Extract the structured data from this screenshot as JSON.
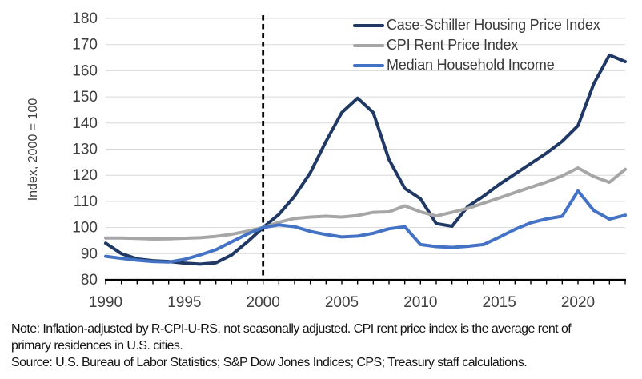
{
  "chart_data": {
    "type": "line",
    "title": "",
    "xlabel": "",
    "ylabel": "Index, 2000 = 100",
    "xlim": [
      1990,
      2023
    ],
    "ylim": [
      80,
      180
    ],
    "yticks": [
      80,
      90,
      100,
      110,
      120,
      130,
      140,
      150,
      160,
      170,
      180
    ],
    "xticks": [
      1990,
      1995,
      2000,
      2005,
      2010,
      2015,
      2020
    ],
    "minor_xtick_step": 1,
    "grid": "horizontal",
    "legend_position": "inside-top-right",
    "reference_line": {
      "type": "vertical",
      "style": "dashed",
      "x": 2000,
      "color": "#000000"
    },
    "x": [
      1990,
      1991,
      1992,
      1993,
      1994,
      1995,
      1996,
      1997,
      1998,
      1999,
      2000,
      2001,
      2002,
      2003,
      2004,
      2005,
      2006,
      2007,
      2008,
      2009,
      2010,
      2011,
      2012,
      2013,
      2014,
      2015,
      2016,
      2017,
      2018,
      2019,
      2020,
      2021,
      2022,
      2023
    ],
    "series": [
      {
        "name": "Case-Schiller Housing Price Index",
        "color": "#1f3864",
        "values": [
          94,
          90,
          88,
          87.3,
          87,
          86.4,
          86,
          86.5,
          89.5,
          94.5,
          100,
          105,
          112,
          121,
          133,
          144,
          149.5,
          144,
          126,
          115,
          111,
          101.5,
          100.5,
          108,
          112,
          116.5,
          120.5,
          124.5,
          128.5,
          133,
          139,
          155,
          166,
          163.5
        ]
      },
      {
        "name": "CPI Rent Price Index",
        "color": "#a6a6a6",
        "values": [
          96,
          96,
          95.8,
          95.6,
          95.7,
          95.9,
          96.1,
          96.6,
          97.4,
          98.6,
          100,
          102,
          103.5,
          104,
          104.3,
          104,
          104.6,
          105.8,
          106,
          108.3,
          106,
          104.4,
          105.8,
          107.3,
          109.3,
          111.3,
          113.4,
          115.4,
          117.4,
          119.8,
          122.8,
          119.5,
          117.3,
          122.3
        ]
      },
      {
        "name": "Median Household Income",
        "color": "#4472c4",
        "values": [
          89,
          88.2,
          87.5,
          87,
          86.8,
          87.8,
          89.5,
          91.5,
          94.5,
          97.5,
          100,
          101,
          100.3,
          98.5,
          97.3,
          96.4,
          96.7,
          97.8,
          99.5,
          100.3,
          93.5,
          92.7,
          92.4,
          92.8,
          93.5,
          96.3,
          99.3,
          101.8,
          103.3,
          104.3,
          114,
          106.5,
          103.2,
          104.7
        ]
      }
    ]
  },
  "notes": {
    "note": "Note: Inflation-adjusted by R-CPI-U-RS, not seasonally adjusted. CPI rent price index is the average rent of primary residences in U.S. cities.",
    "source": "Source: U.S. Bureau of Labor Statistics; S&P Dow Jones Indices; CPS; Treasury staff calculations."
  },
  "colors": {
    "grid": "#d9d9d9",
    "axis": "#000000",
    "tick_text": "#3f3f3f",
    "background": "#ffffff"
  }
}
